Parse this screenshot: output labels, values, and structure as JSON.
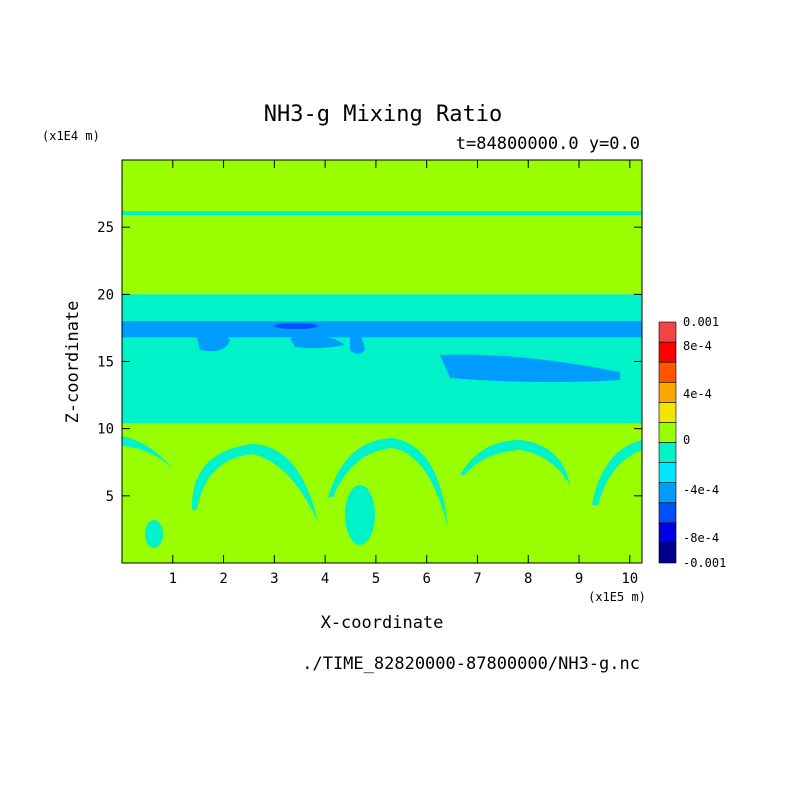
{
  "chart_data": {
    "type": "heatmap",
    "title": "NH3-g Mixing Ratio",
    "subtitle": "t=84800000.0 y=0.0",
    "xlabel": "X-coordinate",
    "ylabel": "Z-coordinate",
    "x_scale_label": "(x1E5 m)",
    "y_scale_label": "(x1E4 m)",
    "xlim": [
      0,
      10.24
    ],
    "ylim": [
      0,
      30
    ],
    "x_ticks": [
      "1",
      "2",
      "3",
      "4",
      "5",
      "6",
      "7",
      "8",
      "9",
      "10"
    ],
    "y_ticks": [
      "5",
      "10",
      "15",
      "20",
      "25"
    ],
    "colorbar": {
      "levels": [
        -0.001,
        -0.0008,
        -0.0006,
        -0.0004,
        -0.0002,
        0,
        0.0002,
        0.0004,
        0.0006,
        0.0008,
        0.001
      ],
      "colors": [
        "#00008f",
        "#0000e6",
        "#0050ff",
        "#009cff",
        "#00e6ff",
        "#00f2c8",
        "#99ff00",
        "#f2e600",
        "#ffa500",
        "#ff5500",
        "#ff0000",
        "#f24444"
      ],
      "labels": [
        "0.001",
        "8e-4",
        "4e-4",
        "0",
        "-4e-4",
        "-8e-4",
        "-0.001"
      ]
    },
    "field": {
      "background": "#99ff00",
      "bands": [
        {
          "z_min": 10.4,
          "z_max": 19.2,
          "color": "#00f2c8"
        },
        {
          "z_min": 16.8,
          "z_max": 18.0,
          "color": "#009cff"
        },
        {
          "z_min": 19.2,
          "z_max": 20.0,
          "color": "#00f2c8"
        },
        {
          "z_min": 25.9,
          "z_max": 26.2,
          "color": "#00f2c8"
        }
      ]
    },
    "source_file": "./TIME_82820000-87800000/NH3-g.nc"
  }
}
